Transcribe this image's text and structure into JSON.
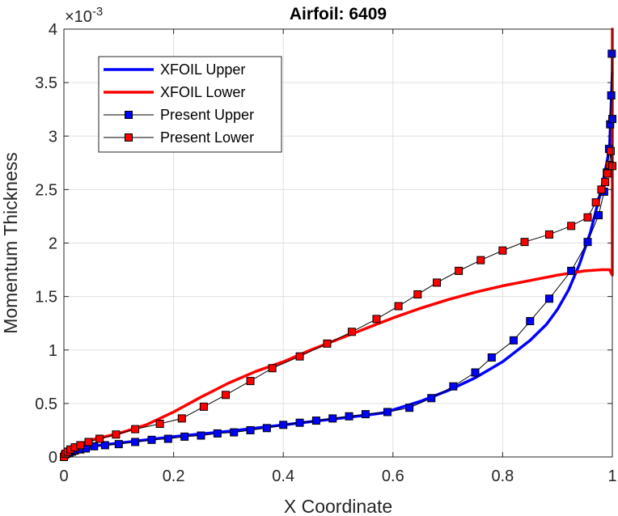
{
  "chart_data": {
    "type": "line",
    "title": "Airfoil: 6409",
    "xlabel": "X Coordinate",
    "ylabel": "Momentum Thickness",
    "y_multiplier": "×10-3",
    "xlim": [
      0,
      1
    ],
    "ylim": [
      0,
      4
    ],
    "x_ticks": [
      "0",
      "0.2",
      "0.4",
      "0.6",
      "0.8",
      "1"
    ],
    "y_ticks": [
      "0",
      "0.5",
      "1",
      "1.5",
      "2",
      "2.5",
      "3",
      "3.5",
      "4"
    ],
    "grid": true,
    "legend_position": "top-left",
    "series": [
      {
        "name": "XFOIL Upper",
        "color": "#0000ff",
        "style": "line",
        "x": [
          0,
          0.005,
          0.01,
          0.02,
          0.05,
          0.1,
          0.15,
          0.2,
          0.3,
          0.4,
          0.5,
          0.55,
          0.58,
          0.6,
          0.65,
          0.7,
          0.75,
          0.8,
          0.85,
          0.88,
          0.9,
          0.92,
          0.94,
          0.96,
          0.98,
          0.99,
          0.995,
          1.0
        ],
        "y": [
          0,
          0.03,
          0.05,
          0.07,
          0.1,
          0.13,
          0.16,
          0.19,
          0.24,
          0.3,
          0.36,
          0.39,
          0.41,
          0.44,
          0.52,
          0.62,
          0.74,
          0.89,
          1.09,
          1.24,
          1.38,
          1.56,
          1.8,
          2.1,
          2.5,
          2.75,
          2.9,
          3.6
        ]
      },
      {
        "name": "XFOIL Lower",
        "color": "#ff0000",
        "style": "line",
        "x": [
          0,
          0.01,
          0.02,
          0.05,
          0.1,
          0.15,
          0.2,
          0.25,
          0.3,
          0.35,
          0.4,
          0.45,
          0.5,
          0.55,
          0.6,
          0.65,
          0.7,
          0.75,
          0.8,
          0.85,
          0.9,
          0.95,
          0.98,
          0.995,
          1.0,
          1.0,
          1.001
        ],
        "y": [
          0,
          0.06,
          0.1,
          0.16,
          0.22,
          0.3,
          0.42,
          0.56,
          0.69,
          0.8,
          0.89,
          1.0,
          1.1,
          1.2,
          1.3,
          1.39,
          1.47,
          1.54,
          1.6,
          1.65,
          1.7,
          1.74,
          1.75,
          1.75,
          1.7,
          4.0,
          1.7
        ]
      },
      {
        "name": "Present Upper",
        "color": "#0000ff",
        "style": "line-marker",
        "x": [
          0.0,
          0.002,
          0.005,
          0.01,
          0.015,
          0.02,
          0.03,
          0.04,
          0.055,
          0.075,
          0.1,
          0.13,
          0.16,
          0.19,
          0.22,
          0.25,
          0.28,
          0.31,
          0.34,
          0.37,
          0.4,
          0.43,
          0.46,
          0.49,
          0.52,
          0.55,
          0.59,
          0.63,
          0.67,
          0.71,
          0.75,
          0.78,
          0.82,
          0.85,
          0.885,
          0.925,
          0.955,
          0.975,
          0.985,
          0.99,
          0.994,
          0.996,
          0.998,
          0.999,
          1.0
        ],
        "y": [
          0.0,
          0.02,
          0.03,
          0.04,
          0.05,
          0.06,
          0.07,
          0.08,
          0.1,
          0.11,
          0.12,
          0.14,
          0.16,
          0.17,
          0.19,
          0.2,
          0.22,
          0.23,
          0.25,
          0.27,
          0.3,
          0.32,
          0.34,
          0.36,
          0.38,
          0.4,
          0.42,
          0.46,
          0.55,
          0.66,
          0.79,
          0.93,
          1.09,
          1.27,
          1.48,
          1.74,
          2.01,
          2.26,
          2.48,
          2.66,
          2.88,
          3.11,
          3.38,
          3.77,
          3.16
        ]
      },
      {
        "name": "Present Lower",
        "color": "#ff0000",
        "style": "line-marker",
        "x": [
          0.0,
          0.003,
          0.007,
          0.012,
          0.02,
          0.03,
          0.045,
          0.065,
          0.095,
          0.13,
          0.175,
          0.215,
          0.255,
          0.295,
          0.34,
          0.38,
          0.43,
          0.48,
          0.525,
          0.57,
          0.61,
          0.645,
          0.68,
          0.72,
          0.76,
          0.8,
          0.84,
          0.885,
          0.925,
          0.955,
          0.97,
          0.98,
          0.987,
          0.991,
          0.995,
          0.997,
          1.0
        ],
        "y": [
          0.0,
          0.03,
          0.05,
          0.07,
          0.09,
          0.11,
          0.14,
          0.17,
          0.21,
          0.26,
          0.31,
          0.36,
          0.47,
          0.58,
          0.71,
          0.83,
          0.94,
          1.06,
          1.17,
          1.29,
          1.41,
          1.52,
          1.63,
          1.74,
          1.84,
          1.93,
          2.01,
          2.08,
          2.16,
          2.24,
          2.38,
          2.5,
          2.57,
          2.65,
          2.73,
          2.86,
          2.72
        ]
      }
    ]
  }
}
